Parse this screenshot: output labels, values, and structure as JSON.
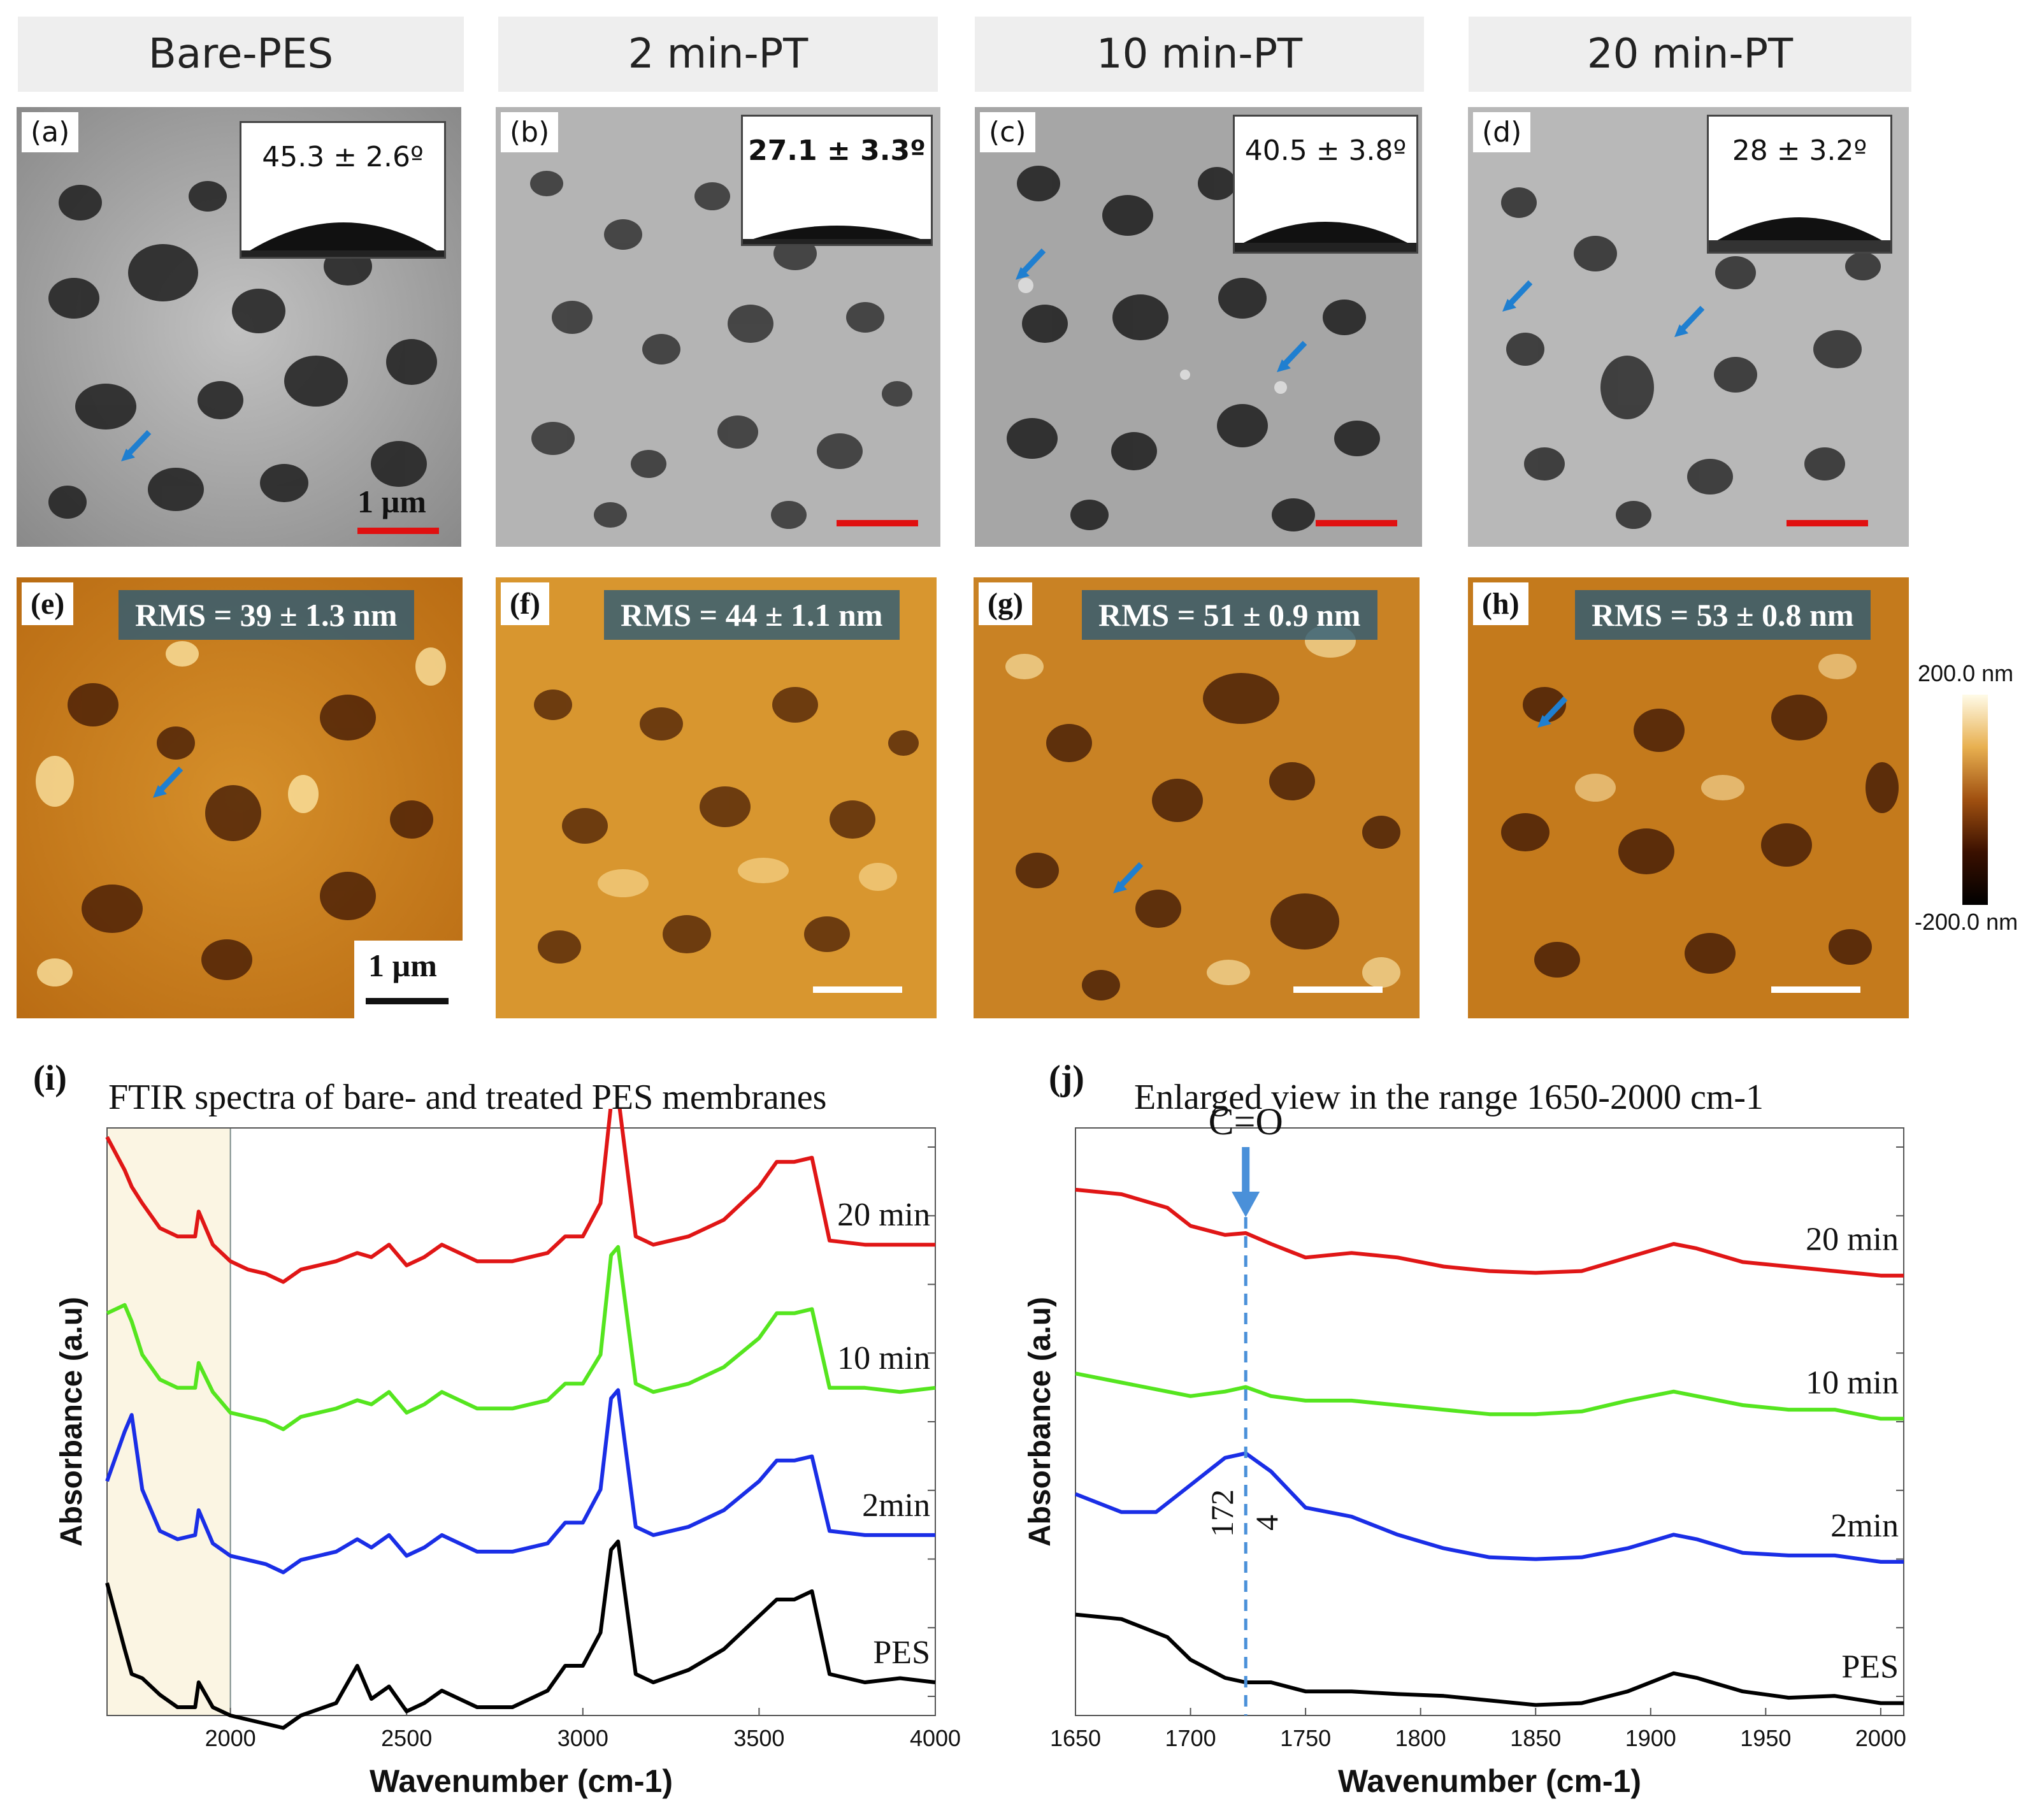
{
  "headers": [
    "Bare-PES",
    "2 min-PT",
    "10 min-PT",
    "20 min-PT"
  ],
  "sem_panels": [
    {
      "label": "(a)",
      "contact_angle": "45.3 ± 2.6º",
      "scale_text": "1 µm"
    },
    {
      "label": "(b)",
      "contact_angle": "27.1 ± 3.3º",
      "scale_text": ""
    },
    {
      "label": "(c)",
      "contact_angle": "40.5 ± 3.8º",
      "scale_text": ""
    },
    {
      "label": "(d)",
      "contact_angle": "28 ± 3.2º",
      "scale_text": ""
    }
  ],
  "afm_panels": [
    {
      "label": "(e)",
      "rms": "RMS = 39 ± 1.3 nm",
      "scale_text": "1 µm"
    },
    {
      "label": "(f)",
      "rms": "RMS = 44 ± 1.1 nm",
      "scale_text": ""
    },
    {
      "label": "(g)",
      "rms": "RMS = 51 ± 0.9 nm",
      "scale_text": ""
    },
    {
      "label": "(h)",
      "rms": "RMS = 53 ± 0.8 nm",
      "scale_text": ""
    }
  ],
  "colorbar": {
    "max": "200.0 nm",
    "min": "-200.0 nm"
  },
  "colors": {
    "sem_scalebar": "#e01010",
    "afm_scalebar": "#ffffff",
    "arrow": "#1f7fd0",
    "pes": "#000000",
    "min2": "#1a2ee6",
    "min10": "#55e51f",
    "min20": "#e01616",
    "highlight": "#fbf5e3",
    "dashed": "#4a90d9"
  },
  "chart_data": [
    {
      "type": "line",
      "panel_label": "(i)",
      "title": "FTIR spectra of bare- and treated PES membranes",
      "xlabel": "Wavenumber (cm-1)",
      "ylabel": "Absorbance (a.u)",
      "xlim": [
        1650,
        4000
      ],
      "xticks": [
        2000,
        2500,
        3000,
        3500,
        4000
      ],
      "highlight_range": [
        1650,
        2000
      ],
      "grid": false,
      "series": [
        {
          "name": "20 min",
          "offset": 3.0,
          "x": [
            1650,
            1700,
            1720,
            1750,
            1800,
            1850,
            1900,
            1910,
            1950,
            2000,
            2050,
            2100,
            2150,
            2200,
            2300,
            2360,
            2400,
            2450,
            2500,
            2550,
            2600,
            2700,
            2800,
            2900,
            2950,
            3000,
            3050,
            3080,
            3100,
            3150,
            3200,
            3300,
            3400,
            3500,
            3550,
            3600,
            3650,
            3700,
            3800,
            3900,
            4000
          ],
          "y": [
            2.8,
            2.4,
            2.2,
            2.0,
            1.7,
            1.6,
            1.6,
            1.9,
            1.5,
            1.3,
            1.2,
            1.15,
            1.05,
            1.2,
            1.3,
            1.4,
            1.35,
            1.5,
            1.25,
            1.35,
            1.5,
            1.3,
            1.3,
            1.4,
            1.6,
            1.6,
            2.0,
            3.2,
            3.3,
            1.6,
            1.5,
            1.6,
            1.8,
            2.2,
            2.5,
            2.5,
            2.55,
            1.55,
            1.5,
            1.5,
            1.5
          ]
        },
        {
          "name": "10 min",
          "offset": 2.0,
          "x": [
            1650,
            1700,
            1720,
            1750,
            1800,
            1850,
            1900,
            1910,
            1950,
            2000,
            2050,
            2100,
            2150,
            2200,
            2300,
            2360,
            2400,
            2450,
            2500,
            2550,
            2600,
            2700,
            2800,
            2900,
            2950,
            3000,
            3050,
            3080,
            3100,
            3150,
            3200,
            3300,
            3400,
            3500,
            3550,
            3600,
            3650,
            3700,
            3800,
            3900,
            4000
          ],
          "y": [
            2.4,
            2.5,
            2.3,
            1.9,
            1.6,
            1.5,
            1.5,
            1.8,
            1.45,
            1.2,
            1.15,
            1.1,
            1.0,
            1.15,
            1.25,
            1.35,
            1.3,
            1.45,
            1.2,
            1.3,
            1.45,
            1.25,
            1.25,
            1.35,
            1.55,
            1.55,
            1.9,
            3.1,
            3.2,
            1.55,
            1.45,
            1.55,
            1.75,
            2.1,
            2.4,
            2.4,
            2.45,
            1.5,
            1.5,
            1.45,
            1.5
          ]
        },
        {
          "name": "2min",
          "offset": 1.0,
          "x": [
            1650,
            1700,
            1720,
            1750,
            1800,
            1850,
            1900,
            1910,
            1950,
            2000,
            2050,
            2100,
            2150,
            2200,
            2300,
            2360,
            2400,
            2450,
            2500,
            2550,
            2600,
            2700,
            2800,
            2900,
            2950,
            3000,
            3050,
            3080,
            3100,
            3150,
            3200,
            3300,
            3400,
            3500,
            3550,
            3600,
            3650,
            3700,
            3800,
            3900,
            4000
          ],
          "y": [
            2.1,
            2.7,
            2.9,
            2.0,
            1.5,
            1.4,
            1.45,
            1.75,
            1.35,
            1.2,
            1.15,
            1.1,
            1.0,
            1.15,
            1.25,
            1.4,
            1.3,
            1.45,
            1.2,
            1.3,
            1.45,
            1.25,
            1.25,
            1.35,
            1.6,
            1.6,
            2.0,
            3.1,
            3.2,
            1.55,
            1.45,
            1.55,
            1.75,
            2.1,
            2.35,
            2.35,
            2.4,
            1.5,
            1.45,
            1.45,
            1.45
          ]
        },
        {
          "name": "PES",
          "offset": 0.0,
          "x": [
            1650,
            1700,
            1720,
            1750,
            1800,
            1850,
            1900,
            1910,
            1950,
            2000,
            2050,
            2100,
            2150,
            2200,
            2300,
            2360,
            2400,
            2450,
            2500,
            2550,
            2600,
            2700,
            2800,
            2900,
            2950,
            3000,
            3050,
            3080,
            3100,
            3150,
            3200,
            3300,
            3400,
            3500,
            3550,
            3600,
            3650,
            3700,
            3800,
            3900,
            4000
          ],
          "y": [
            2.6,
            1.8,
            1.5,
            1.45,
            1.25,
            1.1,
            1.1,
            1.4,
            1.1,
            1.0,
            0.95,
            0.9,
            0.85,
            1.0,
            1.15,
            1.6,
            1.2,
            1.35,
            1.05,
            1.15,
            1.3,
            1.1,
            1.1,
            1.3,
            1.6,
            1.6,
            2.0,
            3.0,
            3.1,
            1.5,
            1.4,
            1.55,
            1.8,
            2.2,
            2.4,
            2.4,
            2.5,
            1.5,
            1.4,
            1.45,
            1.4
          ]
        }
      ]
    },
    {
      "type": "line",
      "panel_label": "(j)",
      "title": "Enlarged view in the range 1650-2000 cm-1",
      "xlabel": "Wavenumber (cm-1)",
      "ylabel": "Absorbance (a.u)",
      "xlim": [
        1650,
        2010
      ],
      "xticks": [
        1650,
        1700,
        1750,
        1800,
        1850,
        1900,
        1950,
        2000
      ],
      "annotation": "C=O",
      "marker_x": 1724,
      "marker_label_a": "172",
      "marker_label_b": "4",
      "grid": false,
      "series": [
        {
          "name": "20 min",
          "offset": 3.0,
          "x": [
            1650,
            1670,
            1690,
            1700,
            1715,
            1724,
            1735,
            1750,
            1770,
            1790,
            1810,
            1830,
            1850,
            1870,
            1890,
            1910,
            1920,
            1940,
            1960,
            1980,
            2000,
            2010
          ],
          "y": [
            1.8,
            1.75,
            1.6,
            1.4,
            1.3,
            1.32,
            1.2,
            1.05,
            1.1,
            1.05,
            0.95,
            0.9,
            0.88,
            0.9,
            1.05,
            1.2,
            1.15,
            1.0,
            0.95,
            0.9,
            0.85,
            0.85
          ]
        },
        {
          "name": "10 min",
          "offset": 2.0,
          "x": [
            1650,
            1670,
            1690,
            1700,
            1715,
            1724,
            1735,
            1750,
            1770,
            1790,
            1810,
            1830,
            1850,
            1870,
            1890,
            1910,
            1920,
            1940,
            1960,
            1980,
            2000,
            2010
          ],
          "y": [
            1.3,
            1.2,
            1.1,
            1.05,
            1.1,
            1.15,
            1.05,
            1.0,
            1.0,
            0.95,
            0.9,
            0.85,
            0.85,
            0.88,
            1.0,
            1.1,
            1.05,
            0.95,
            0.9,
            0.9,
            0.8,
            0.8
          ]
        },
        {
          "name": "2min",
          "offset": 1.0,
          "x": [
            1650,
            1670,
            1685,
            1700,
            1715,
            1724,
            1735,
            1750,
            1770,
            1790,
            1810,
            1830,
            1850,
            1870,
            1890,
            1910,
            1920,
            1940,
            1960,
            1980,
            2000,
            2010
          ],
          "y": [
            1.5,
            1.3,
            1.3,
            1.6,
            1.9,
            1.95,
            1.75,
            1.35,
            1.25,
            1.05,
            0.9,
            0.8,
            0.78,
            0.8,
            0.9,
            1.05,
            1.0,
            0.85,
            0.82,
            0.82,
            0.75,
            0.75
          ]
        },
        {
          "name": "PES",
          "offset": 0.0,
          "x": [
            1650,
            1670,
            1690,
            1700,
            1715,
            1724,
            1735,
            1750,
            1770,
            1790,
            1810,
            1830,
            1850,
            1870,
            1890,
            1910,
            1920,
            1940,
            1960,
            1980,
            2000,
            2010
          ],
          "y": [
            1.7,
            1.65,
            1.45,
            1.2,
            1.0,
            0.95,
            0.95,
            0.85,
            0.85,
            0.82,
            0.8,
            0.75,
            0.7,
            0.72,
            0.85,
            1.05,
            1.0,
            0.85,
            0.78,
            0.8,
            0.72,
            0.72
          ]
        }
      ]
    }
  ]
}
